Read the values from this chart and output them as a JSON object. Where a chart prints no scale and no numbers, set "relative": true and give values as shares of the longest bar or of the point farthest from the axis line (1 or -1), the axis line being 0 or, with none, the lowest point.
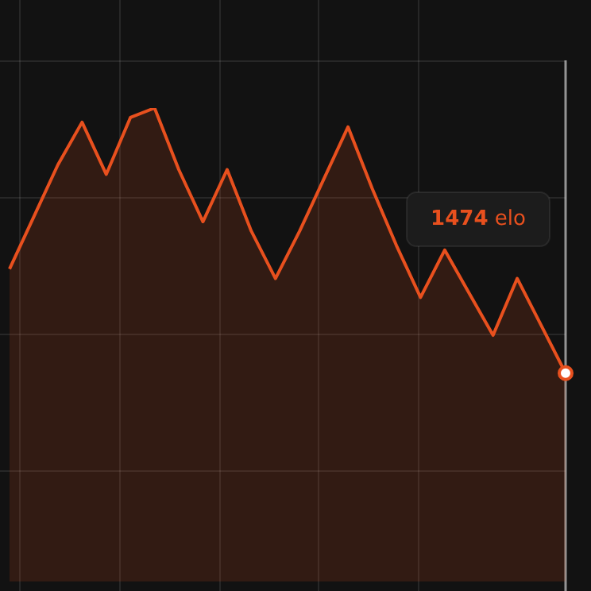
{
  "chart_data": {
    "type": "area",
    "relative": true,
    "categories": [
      null,
      null,
      null,
      null,
      null,
      null,
      null,
      null,
      null,
      null,
      null,
      null,
      null,
      null,
      null,
      null,
      null,
      null,
      null,
      null,
      null,
      null,
      null,
      null
    ],
    "series": [
      {
        "color": "#e8501e",
        "values": [
          0.66,
          0.77,
          0.88,
          0.97,
          0.86,
          0.98,
          1,
          0.87,
          0.76,
          0.87,
          0.74,
          0.64,
          0.74,
          0.85,
          0.96,
          0.83,
          0.71,
          0.6,
          0.7,
          0.61,
          0.52,
          0.64,
          0.54,
          0.44
        ]
      }
    ],
    "annotations": [
      "1474 elo"
    ],
    "grid": true,
    "legend": false,
    "marker": "none",
    "line_style": "solid"
  }
}
